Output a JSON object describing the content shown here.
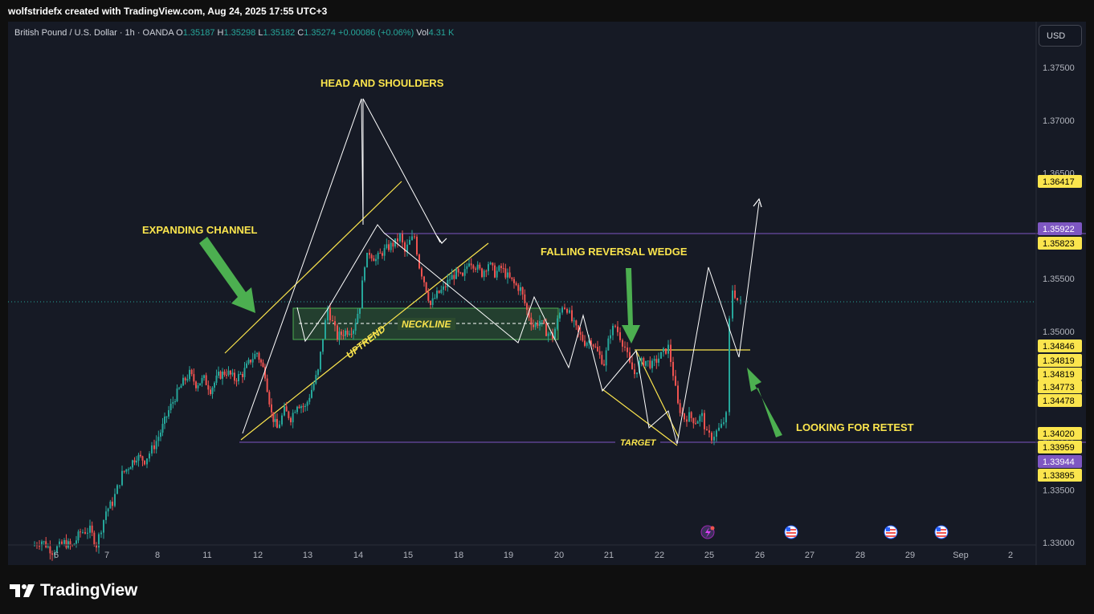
{
  "header": {
    "attribution": "wolfstridefx created with TradingView.com, Aug 24, 2025 17:55 UTC+3"
  },
  "legend": {
    "symbol": "British Pound / U.S. Dollar · 1h · OANDA",
    "open_label": "O",
    "open": "1.35187",
    "high_label": "H",
    "high": "1.35298",
    "low_label": "L",
    "low": "1.35182",
    "close_label": "C",
    "close": "1.35274",
    "change": "+0.00086 (+0.06%)",
    "vol_label": "Vol",
    "vol": "4.31 K"
  },
  "currency_button": "USD",
  "footer": {
    "brand": "TradingView"
  },
  "colors": {
    "up": "#26a69a",
    "down": "#ef5350",
    "annotation": "#fbe54d",
    "level": "#7e57c2",
    "background": "#161a25"
  },
  "chart_data": {
    "type": "candlestick",
    "instrument": "GBP/USD",
    "timeframe": "1h",
    "y_axis": {
      "ticks": [
        1.375,
        1.37,
        1.365,
        1.36,
        1.355,
        1.35,
        1.345,
        1.34,
        1.335,
        1.33
      ],
      "tick_labels": [
        "1.37500",
        "1.37000",
        "1.36500",
        "1.36000",
        "1.35500",
        "1.35000",
        "1.34500",
        "1.34000",
        "1.33500",
        "1.33000"
      ]
    },
    "x_axis": {
      "tick_labels": [
        "6",
        "7",
        "8",
        "11",
        "12",
        "13",
        "14",
        "15",
        "18",
        "19",
        "20",
        "21",
        "22",
        "25",
        "26",
        "27",
        "28",
        "29",
        "Sep",
        "2"
      ]
    },
    "price_series": [
      [
        0,
        1.3297
      ],
      [
        12,
        1.3302
      ],
      [
        25,
        1.3292
      ],
      [
        40,
        1.33
      ],
      [
        50,
        1.3296
      ],
      [
        60,
        1.331
      ],
      [
        72,
        1.3312
      ],
      [
        80,
        1.3298
      ],
      [
        92,
        1.333
      ],
      [
        100,
        1.3338
      ],
      [
        112,
        1.3365
      ],
      [
        120,
        1.3372
      ],
      [
        130,
        1.3382
      ],
      [
        140,
        1.3378
      ],
      [
        152,
        1.3392
      ],
      [
        160,
        1.3405
      ],
      [
        170,
        1.3425
      ],
      [
        178,
        1.3438
      ],
      [
        188,
        1.3452
      ],
      [
        196,
        1.346
      ],
      [
        204,
        1.345
      ],
      [
        214,
        1.3455
      ],
      [
        222,
        1.3445
      ],
      [
        232,
        1.3458
      ],
      [
        242,
        1.3462
      ],
      [
        252,
        1.3455
      ],
      [
        262,
        1.346
      ],
      [
        272,
        1.3473
      ],
      [
        280,
        1.348
      ],
      [
        290,
        1.346
      ],
      [
        298,
        1.3422
      ],
      [
        305,
        1.3408
      ],
      [
        314,
        1.3425
      ],
      [
        322,
        1.3418
      ],
      [
        330,
        1.3432
      ],
      [
        340,
        1.3428
      ],
      [
        348,
        1.3445
      ],
      [
        356,
        1.3462
      ],
      [
        362,
        1.3495
      ],
      [
        368,
        1.3522
      ],
      [
        374,
        1.3508
      ],
      [
        380,
        1.3495
      ],
      [
        390,
        1.35
      ],
      [
        400,
        1.3503
      ],
      [
        408,
        1.3525
      ],
      [
        414,
        1.3565
      ],
      [
        420,
        1.3575
      ],
      [
        428,
        1.3568
      ],
      [
        436,
        1.3575
      ],
      [
        444,
        1.358
      ],
      [
        452,
        1.3584
      ],
      [
        458,
        1.359
      ],
      [
        464,
        1.3575
      ],
      [
        470,
        1.3585
      ],
      [
        476,
        1.359
      ],
      [
        482,
        1.3562
      ],
      [
        488,
        1.3548
      ],
      [
        496,
        1.3525
      ],
      [
        504,
        1.3535
      ],
      [
        512,
        1.354
      ],
      [
        520,
        1.355
      ],
      [
        528,
        1.3555
      ],
      [
        536,
        1.355
      ],
      [
        544,
        1.3568
      ],
      [
        552,
        1.3562
      ],
      [
        560,
        1.3555
      ],
      [
        568,
        1.3565
      ],
      [
        576,
        1.3555
      ],
      [
        584,
        1.356
      ],
      [
        592,
        1.3552
      ],
      [
        600,
        1.3545
      ],
      [
        608,
        1.354
      ],
      [
        616,
        1.352
      ],
      [
        624,
        1.3505
      ],
      [
        632,
        1.351
      ],
      [
        640,
        1.35
      ],
      [
        648,
        1.3495
      ],
      [
        654,
        1.351
      ],
      [
        660,
        1.3525
      ],
      [
        666,
        1.3522
      ],
      [
        672,
        1.351
      ],
      [
        680,
        1.3498
      ],
      [
        688,
        1.349
      ],
      [
        696,
        1.3492
      ],
      [
        704,
        1.348
      ],
      [
        712,
        1.347
      ],
      [
        720,
        1.35
      ],
      [
        726,
        1.3505
      ],
      [
        732,
        1.3495
      ],
      [
        738,
        1.3485
      ],
      [
        744,
        1.3468
      ],
      [
        750,
        1.346
      ],
      [
        756,
        1.347
      ],
      [
        764,
        1.3472
      ],
      [
        772,
        1.3468
      ],
      [
        780,
        1.3475
      ],
      [
        786,
        1.348
      ],
      [
        792,
        1.3485
      ],
      [
        798,
        1.346
      ],
      [
        804,
        1.343
      ],
      [
        812,
        1.3418
      ],
      [
        818,
        1.342
      ],
      [
        826,
        1.3415
      ],
      [
        834,
        1.342
      ],
      [
        840,
        1.3402
      ],
      [
        846,
        1.34
      ],
      [
        852,
        1.3405
      ],
      [
        858,
        1.341
      ],
      [
        864,
        1.342
      ],
      [
        868,
        1.351
      ],
      [
        872,
        1.354
      ],
      [
        878,
        1.353
      ],
      [
        882,
        1.3527
      ]
    ],
    "price_labels": [
      {
        "value": "1.36417",
        "kind": "annotation"
      },
      {
        "value": "1.35922",
        "kind": "level"
      },
      {
        "value": "1.35823",
        "kind": "annotation"
      },
      {
        "value": "1.34846",
        "kind": "annotation"
      },
      {
        "value": "1.34819",
        "kind": "annotation"
      },
      {
        "value": "1.34819",
        "kind": "annotation"
      },
      {
        "value": "1.34773",
        "kind": "annotation"
      },
      {
        "value": "1.34478",
        "kind": "annotation"
      },
      {
        "value": "1.34020",
        "kind": "annotation"
      },
      {
        "value": "1.33959",
        "kind": "annotation"
      },
      {
        "value": "1.33944",
        "kind": "level"
      },
      {
        "value": "1.33895",
        "kind": "annotation"
      }
    ],
    "horizontal_levels": [
      1.35922,
      1.33944,
      1.34846
    ],
    "annotations": [
      "HEAD AND SHOULDERS",
      "EXPANDING CHANNEL",
      "FALLING REVERSAL WEDGE",
      "NECKLINE",
      "UPTREND",
      "TARGET",
      "LOOKING FOR RETEST"
    ]
  }
}
